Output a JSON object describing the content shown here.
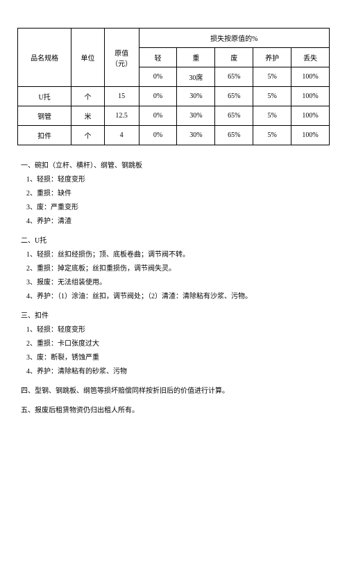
{
  "table": {
    "header": {
      "spec": "品名规格",
      "unit": "单位",
      "origValue": "原值（元）",
      "lossHeader": "损失按原值的%",
      "cols": [
        "轻",
        "重",
        "废",
        "养护",
        "丢失"
      ],
      "baseRates": [
        "0%",
        "30席",
        "65%",
        "5%",
        "100%"
      ]
    },
    "rows": [
      {
        "spec": "U托",
        "unit": "个",
        "orig": "15",
        "vals": [
          "0%",
          "30%",
          "65%",
          "5%",
          "100%"
        ]
      },
      {
        "spec": "钢管",
        "unit": "米",
        "orig": "12.5",
        "vals": [
          "0%",
          "30%",
          "65%",
          "5%",
          "100%"
        ]
      },
      {
        "spec": "扣件",
        "unit": "个",
        "orig": "4",
        "vals": [
          "0%",
          "30%",
          "65%",
          "5%",
          "100%"
        ]
      }
    ]
  },
  "sections": {
    "s1": {
      "title": "一、碗扣（立杆、横杆）、纲管、钢跳板",
      "items": [
        "1、轻损：轻度变形",
        "2、重损：缺件",
        "3、废：严重变形",
        "4、养护：清渣"
      ]
    },
    "s2": {
      "title": "二、U托",
      "items": [
        "1、轻损：丝扣经损伤；顶、底板卷曲；调节阀不转。",
        "2、重损：掉定底板；丝扣重损伤，调节阀失灵。",
        "3、报废：无法组装使用。",
        "4、养护：（1）涂油：丝扣，调节阀处；（2）清渣：清除粘有沙浆、污物。"
      ]
    },
    "s3": {
      "title": "三、扣件",
      "items": [
        "1、轻损：轻度变形",
        "2、重损：卡口张度过大",
        "3、废：断裂，锈蚀严重",
        "4、养护：清除粘有的砂浆、污物"
      ]
    },
    "s4": "四、型钢、钢跳板、纲笆等损坏赔偿同样按折旧后的价值进行计算。",
    "s5": "五、报废后租赁物资仍归出租人所有。"
  }
}
